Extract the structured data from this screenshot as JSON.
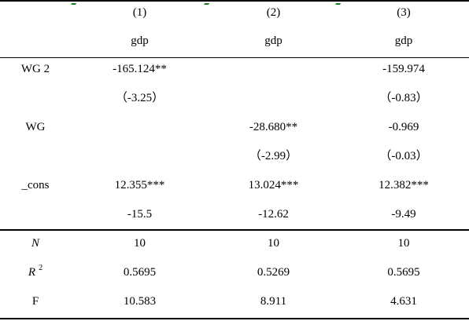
{
  "header": {
    "col_numbers": [
      "(1)",
      "(2)",
      "(3)"
    ],
    "dep_vars": [
      "gdp",
      "gdp",
      "gdp"
    ]
  },
  "rows": {
    "wg2": {
      "label": "WG 2",
      "c1": "-165.124**",
      "c2": "",
      "c3": "-159.974"
    },
    "wg2_t": {
      "label": "",
      "c1": "（-3.25）",
      "c2": "",
      "c3": "（-0.83）"
    },
    "wg": {
      "label": "WG",
      "c1": "",
      "c2": "-28.680**",
      "c3": "-0.969"
    },
    "wg_t": {
      "label": "",
      "c1": "",
      "c2": "（-2.99）",
      "c3": "（-0.03）"
    },
    "cons": {
      "label": "_cons",
      "c1": "12.355***",
      "c2": "13.024***",
      "c3": "12.382***"
    },
    "cons_t": {
      "label": "",
      "c1": "-15.5",
      "c2": "-12.62",
      "c3": "-9.49"
    }
  },
  "stats": {
    "n": {
      "label": "N",
      "c1": "10",
      "c2": "10",
      "c3": "10"
    },
    "r2": {
      "label": "R",
      "sup": "2",
      "c1": "0.5695",
      "c2": "0.5269",
      "c3": "0.5695"
    },
    "f": {
      "label": "F",
      "c1": "10.583",
      "c2": "8.911",
      "c3": "4.631"
    }
  }
}
